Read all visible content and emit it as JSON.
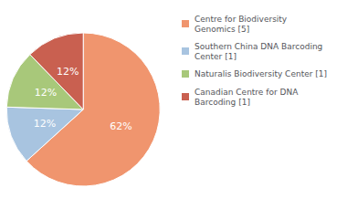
{
  "chart_data": {
    "type": "pie",
    "categories": [
      "Centre for Biodiversity\nGenomics [5]",
      "Southern China DNA Barcoding\nCenter [1]",
      "Naturalis Biodiversity Center [1]",
      "Canadian Centre for DNA\nBarcoding [1]"
    ],
    "values": [
      62,
      12,
      12,
      12
    ],
    "value_labels": [
      "62%",
      "12%",
      "12%",
      "12%"
    ],
    "colors": [
      "#f0956e",
      "#a8c4e0",
      "#a8c87a",
      "#c96050"
    ],
    "data_labels": true,
    "legend": "upper right"
  }
}
